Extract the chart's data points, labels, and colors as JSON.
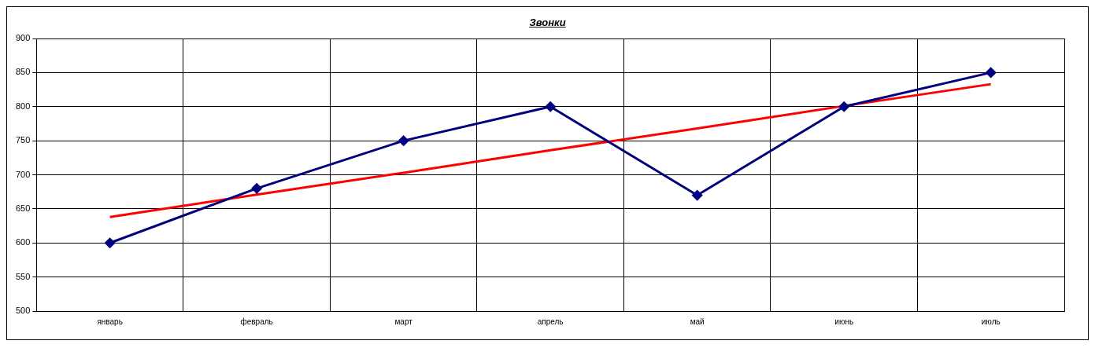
{
  "chart_data": {
    "type": "line",
    "title": "Звонки",
    "categories": [
      "январь",
      "февраль",
      "март",
      "апрель",
      "май",
      "июнь",
      "июль"
    ],
    "series": [
      {
        "color": "#000080",
        "marker": "diamond",
        "values": [
          600,
          680,
          750,
          800,
          670,
          800,
          850
        ]
      },
      {
        "color": "#ff0000",
        "marker": "none",
        "values": [
          638,
          671,
          703,
          736,
          768,
          801,
          833
        ]
      }
    ],
    "ylim": [
      500,
      900
    ],
    "yticks": [
      500,
      550,
      600,
      650,
      700,
      750,
      800,
      850,
      900
    ],
    "grid": true,
    "legend": false
  }
}
